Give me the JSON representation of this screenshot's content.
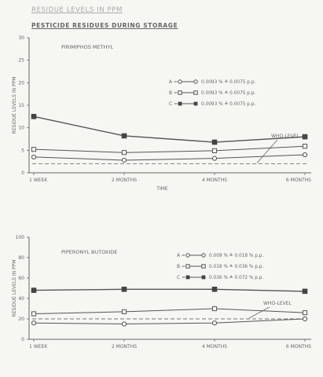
{
  "header": {
    "title": "RESIDUE LEVELS IN PPM",
    "subtitle": "PESTICIDE RESIDUES DURING STORAGE"
  },
  "chart_data": [
    {
      "type": "line",
      "title": "PIRIMIPHOS METHYL",
      "xlabel": "TIME",
      "ylabel": "RESIDUE LEVELS IN PPM",
      "categories": [
        "1 WEEK",
        "2 MONTHS",
        "4 MONTHS",
        "6 MONTHS"
      ],
      "ylim": [
        0,
        30
      ],
      "yticks": [
        "0",
        "5",
        "10",
        "15",
        "20",
        "25",
        "30"
      ],
      "series": [
        {
          "name": "A = 0.0093 %  ≙  0.0075 p.p.",
          "marker": "open-circle",
          "values": [
            3.5,
            2.8,
            3.2,
            4.0
          ]
        },
        {
          "name": "B = 0.0093 %  ≙  0.0075 p.p.",
          "marker": "open-square",
          "values": [
            5.2,
            4.5,
            4.9,
            5.9
          ]
        },
        {
          "name": "C = 0.0093 %  ≙  0.0075 p.p.",
          "marker": "filled-square",
          "values": [
            12.5,
            8.2,
            6.8,
            8.0
          ]
        }
      ],
      "reference_line": {
        "label": "WHO-LEVEL",
        "value": 2.0
      }
    },
    {
      "type": "line",
      "title": "PIPERONYL BUTOXIDE",
      "xlabel": "",
      "ylabel": "RESIDUE LEVELS IN PPM",
      "categories": [
        "1 WEEK",
        "2 MONTHS",
        "4 MONTHS",
        "6 MONTHS"
      ],
      "ylim": [
        0,
        100
      ],
      "yticks": [
        "0",
        "20",
        "40",
        "60",
        "80",
        "100"
      ],
      "series": [
        {
          "name": "A = 0.009 %  ≙  0.018 % p.p.",
          "marker": "open-circle",
          "values": [
            16,
            15,
            16,
            20
          ]
        },
        {
          "name": "B = 0.018 %  ≙  0.036 % p.p.",
          "marker": "open-square",
          "values": [
            25,
            27,
            30,
            26
          ]
        },
        {
          "name": "C = 0.036 %  ≙  0.072 % p.p.",
          "marker": "filled-square",
          "values": [
            48,
            49,
            49,
            47
          ]
        }
      ],
      "reference_line": {
        "label": "WHO-LEVEL",
        "value": 20
      }
    }
  ]
}
